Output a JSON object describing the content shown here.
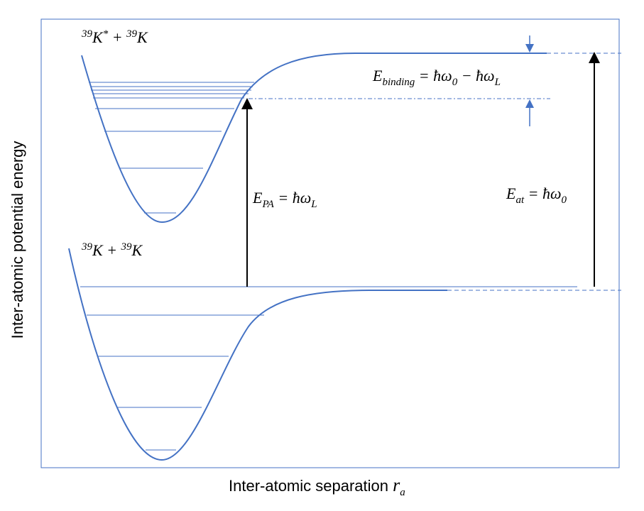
{
  "axes": {
    "y_label": "Inter-atomic potential energy",
    "x_label": [
      {
        "text": "Inter-atomic separation "
      },
      {
        "text": "r",
        "style": "math"
      },
      {
        "text": "a",
        "style": "math",
        "shift": "sub"
      }
    ]
  },
  "states": {
    "upper": [
      {
        "text": "39",
        "shift": "sup"
      },
      {
        "text": "K"
      },
      {
        "text": "*",
        "shift": "sup"
      },
      {
        "text": " + "
      },
      {
        "text": "39",
        "shift": "sup"
      },
      {
        "text": "K"
      }
    ],
    "lower": [
      {
        "text": "39",
        "shift": "sup"
      },
      {
        "text": "K + "
      },
      {
        "text": "39",
        "shift": "sup"
      },
      {
        "text": "K"
      }
    ]
  },
  "energies": {
    "binding": [
      {
        "text": "E"
      },
      {
        "text": "binding",
        "shift": "sub"
      },
      {
        "text": " =  ħω"
      },
      {
        "text": "0",
        "shift": "sub"
      },
      {
        "text": " − ħω"
      },
      {
        "text": "L",
        "shift": "sub"
      }
    ],
    "pa": [
      {
        "text": "E"
      },
      {
        "text": "PA",
        "shift": "sub"
      },
      {
        "text": " =  ħω"
      },
      {
        "text": "L",
        "shift": "sub"
      }
    ],
    "at": [
      {
        "text": "E"
      },
      {
        "text": "at",
        "shift": "sub"
      },
      {
        "text": " =  ħω"
      },
      {
        "text": "0",
        "shift": "sub"
      }
    ]
  }
}
